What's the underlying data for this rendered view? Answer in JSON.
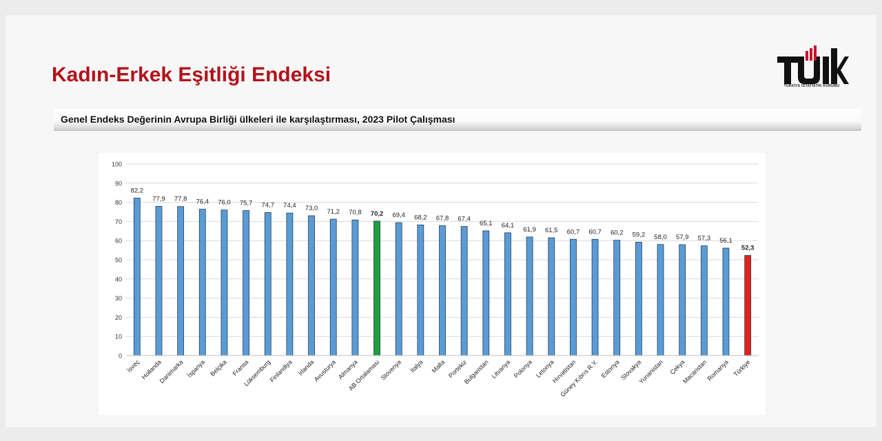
{
  "header": {
    "title": "Kadın-Erkek Eşitliği Endeksi",
    "subtitle": "Genel Endeks Değerinin Avrupa Birliği ülkeleri ile karşılaştırması, 2023 Pilot Çalışması"
  },
  "logo": {
    "text": "TÜİK",
    "subtext": "TÜRKİYE İSTATİSTİK KURUMU"
  },
  "colors": {
    "title": "#b3121b",
    "bar_default": "#5b9bd5",
    "bar_eu_average": "#1e9e3c",
    "bar_turkiye": "#e3211c",
    "bar_outline": "#1f3d5c",
    "gridline": "#d9d9d9"
  },
  "chart_data": {
    "type": "bar",
    "title": "",
    "xlabel": "",
    "ylabel": "",
    "ylim": [
      0,
      100
    ],
    "yticks": [
      0,
      10,
      20,
      30,
      40,
      50,
      60,
      70,
      80,
      90,
      100
    ],
    "grid": true,
    "categories": [
      "İsveç",
      "Hollanda",
      "Danimarka",
      "İspanya",
      "Belçika",
      "Fransa",
      "Lüksemburg",
      "Finlandiya",
      "İrlanda",
      "Avusturya",
      "Almanya",
      "AB Ortalaması",
      "Slovenya",
      "İtalya",
      "Malta",
      "Portekiz",
      "Bulgaristan",
      "Litvanya",
      "Polonya",
      "Letonya",
      "Hırvatistan",
      "Güney Kıbrıs R.Y.",
      "Estonya",
      "Slovakya",
      "Yunanistan",
      "Çekya",
      "Macaristan",
      "Romanya",
      "Türkiye"
    ],
    "values": [
      82.2,
      77.9,
      77.8,
      76.4,
      76.0,
      75.7,
      74.7,
      74.4,
      73.0,
      71.2,
      70.8,
      70.2,
      69.4,
      68.2,
      67.8,
      67.4,
      65.1,
      64.1,
      61.9,
      61.5,
      60.7,
      60.7,
      60.2,
      59.2,
      58.0,
      57.9,
      57.3,
      56.1,
      52.3
    ],
    "value_labels": [
      "82,2",
      "77,9",
      "77,8",
      "76,4",
      "76,0",
      "75,7",
      "74,7",
      "74,4",
      "73,0",
      "71,2",
      "70,8",
      "70,2",
      "69,4",
      "68,2",
      "67,8",
      "67,4",
      "65,1",
      "64,1",
      "61,9",
      "61,5",
      "60,7",
      "60,7",
      "60,2",
      "59,2",
      "58,0",
      "57,9",
      "57,3",
      "56,1",
      "52,3"
    ],
    "highlight": {
      "AB Ortalaması": "eu_average",
      "Türkiye": "turkiye"
    }
  }
}
